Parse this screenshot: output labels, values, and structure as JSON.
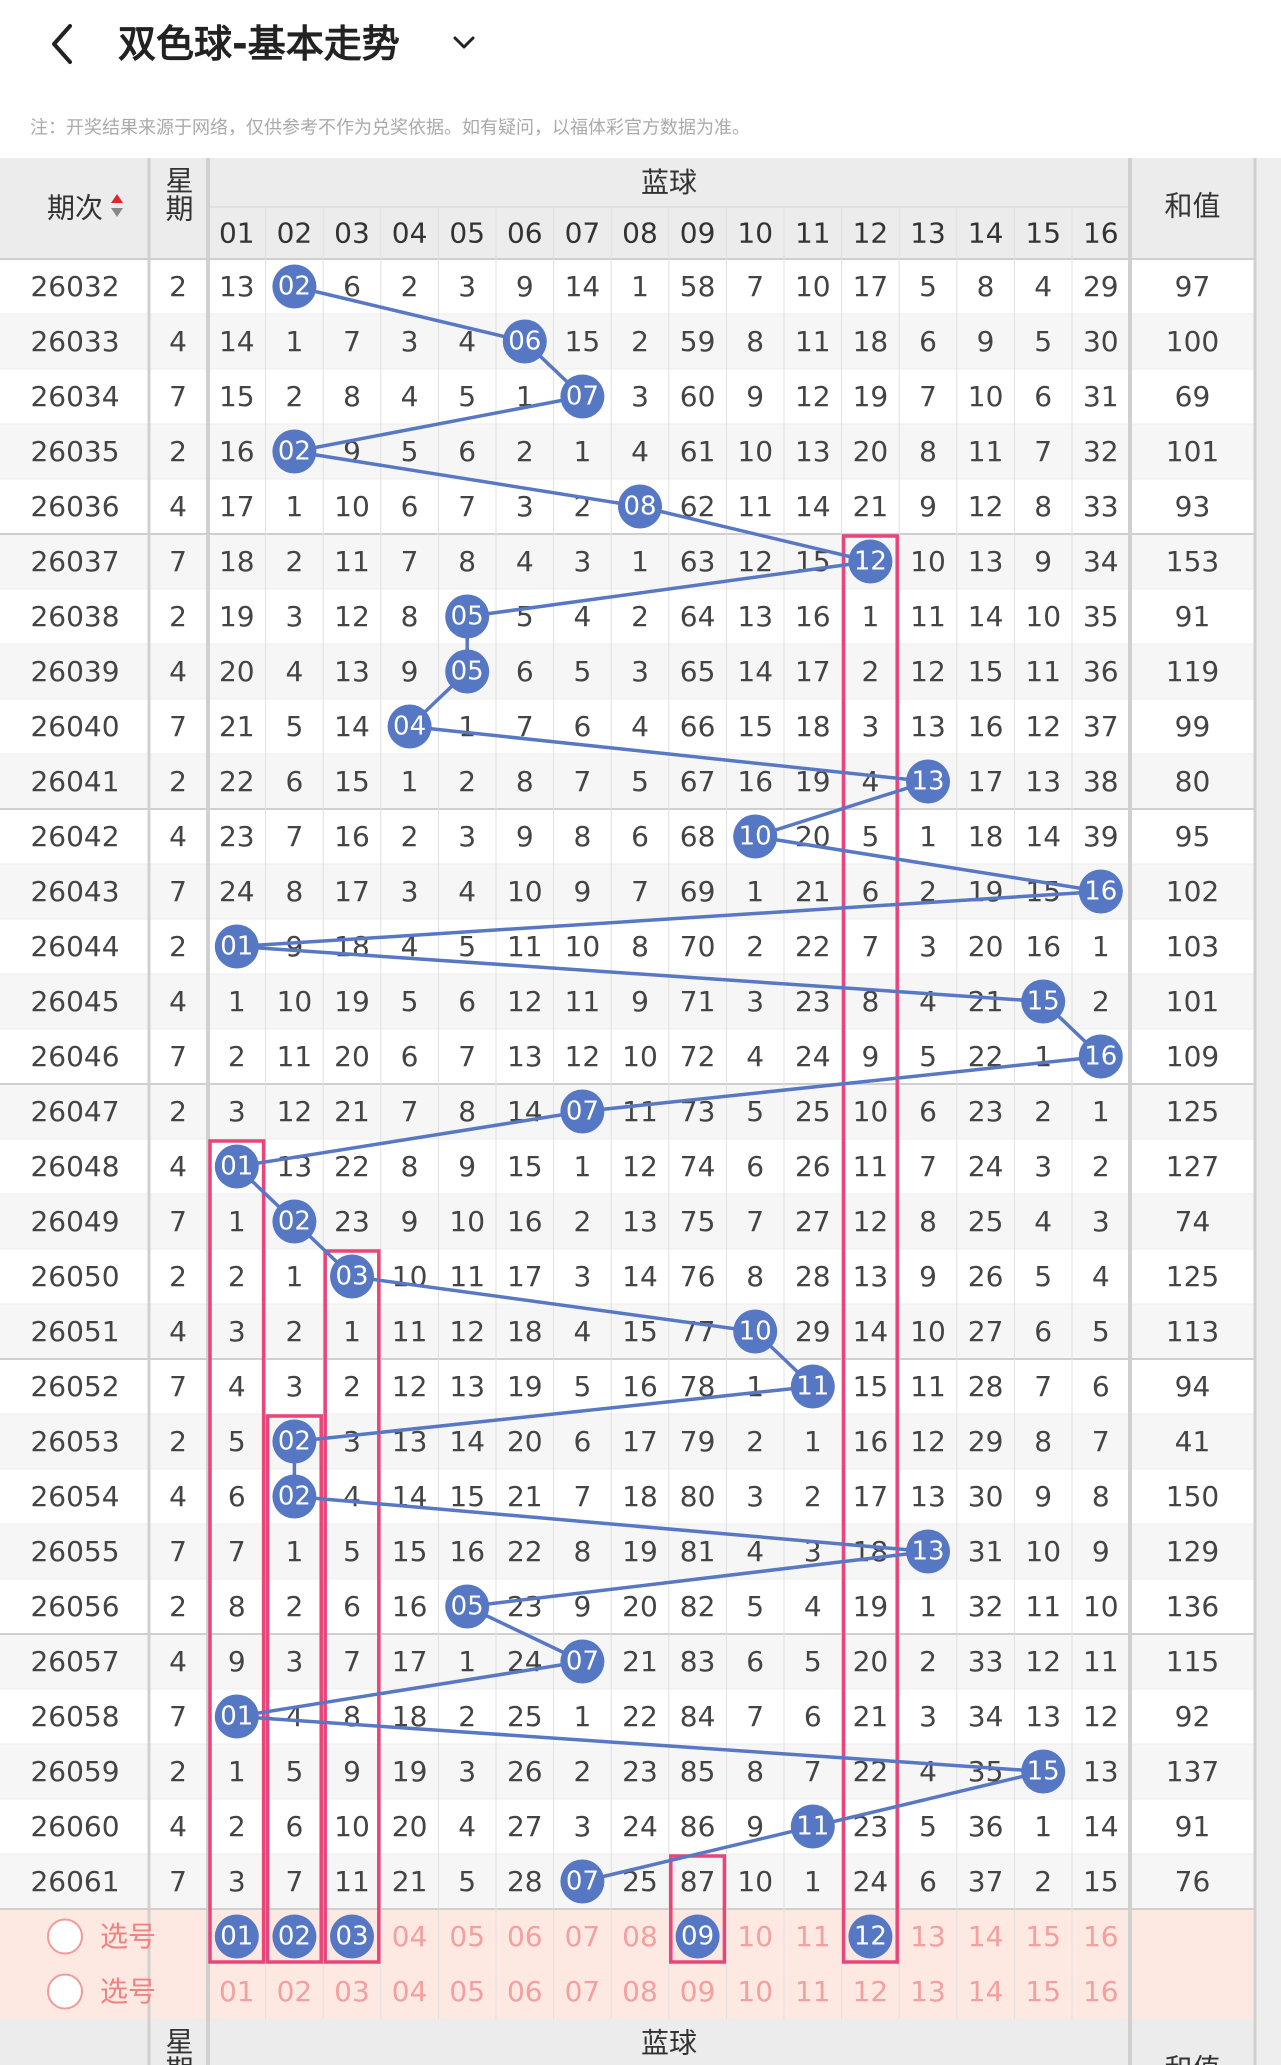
{
  "header": {
    "title": "双色球-基本走势"
  },
  "note": "注：开奖结果来源于网络，仅供参考不作为兑奖依据。如有疑问，以福体彩官方数据为准。",
  "table": {
    "columns": {
      "period": "期次",
      "weekday": "星期",
      "blue": "蓝球",
      "balls": [
        "01",
        "02",
        "03",
        "04",
        "05",
        "06",
        "07",
        "08",
        "09",
        "10",
        "11",
        "12",
        "13",
        "14",
        "15",
        "16"
      ],
      "sum": "和值"
    },
    "rows": [
      {
        "period": "26032",
        "weekday": 2,
        "cells": [
          13,
          {
            "ball": "02"
          },
          6,
          2,
          3,
          9,
          14,
          1,
          58,
          7,
          10,
          17,
          5,
          8,
          4,
          29
        ],
        "sum": 97
      },
      {
        "period": "26033",
        "weekday": 4,
        "cells": [
          14,
          1,
          7,
          3,
          4,
          {
            "ball": "06"
          },
          15,
          2,
          59,
          8,
          11,
          18,
          6,
          9,
          5,
          30
        ],
        "sum": 100
      },
      {
        "period": "26034",
        "weekday": 7,
        "cells": [
          15,
          2,
          8,
          4,
          5,
          1,
          {
            "ball": "07"
          },
          3,
          60,
          9,
          12,
          19,
          7,
          10,
          6,
          31
        ],
        "sum": 69
      },
      {
        "period": "26035",
        "weekday": 2,
        "cells": [
          16,
          {
            "ball": "02"
          },
          9,
          5,
          6,
          2,
          1,
          4,
          61,
          10,
          13,
          20,
          8,
          11,
          7,
          32
        ],
        "sum": 101
      },
      {
        "period": "26036",
        "weekday": 4,
        "cells": [
          17,
          1,
          10,
          6,
          7,
          3,
          2,
          {
            "ball": "08"
          },
          62,
          11,
          14,
          21,
          9,
          12,
          8,
          33
        ],
        "sum": 93
      },
      {
        "period": "26037",
        "weekday": 7,
        "cells": [
          18,
          2,
          11,
          7,
          8,
          4,
          3,
          1,
          63,
          12,
          15,
          {
            "ball": "12"
          },
          10,
          13,
          9,
          34
        ],
        "sum": 153
      },
      {
        "period": "26038",
        "weekday": 2,
        "cells": [
          19,
          3,
          12,
          8,
          {
            "ball": "05"
          },
          5,
          4,
          2,
          64,
          13,
          16,
          1,
          11,
          14,
          10,
          35
        ],
        "sum": 91
      },
      {
        "period": "26039",
        "weekday": 4,
        "cells": [
          20,
          4,
          13,
          9,
          {
            "ball": "05"
          },
          6,
          5,
          3,
          65,
          14,
          17,
          2,
          12,
          15,
          11,
          36
        ],
        "sum": 119
      },
      {
        "period": "26040",
        "weekday": 7,
        "cells": [
          21,
          5,
          14,
          {
            "ball": "04"
          },
          1,
          7,
          6,
          4,
          66,
          15,
          18,
          3,
          13,
          16,
          12,
          37
        ],
        "sum": 99
      },
      {
        "period": "26041",
        "weekday": 2,
        "cells": [
          22,
          6,
          15,
          1,
          2,
          8,
          7,
          5,
          67,
          16,
          19,
          4,
          {
            "ball": "13"
          },
          17,
          13,
          38
        ],
        "sum": 80
      },
      {
        "period": "26042",
        "weekday": 4,
        "cells": [
          23,
          7,
          16,
          2,
          3,
          9,
          8,
          6,
          68,
          {
            "ball": "10"
          },
          20,
          5,
          1,
          18,
          14,
          39
        ],
        "sum": 95
      },
      {
        "period": "26043",
        "weekday": 7,
        "cells": [
          24,
          8,
          17,
          3,
          4,
          10,
          9,
          7,
          69,
          1,
          21,
          6,
          2,
          19,
          15,
          {
            "ball": "16"
          }
        ],
        "sum": 102
      },
      {
        "period": "26044",
        "weekday": 2,
        "cells": [
          {
            "ball": "01"
          },
          9,
          18,
          4,
          5,
          11,
          10,
          8,
          70,
          2,
          22,
          7,
          3,
          20,
          16,
          1
        ],
        "sum": 103
      },
      {
        "period": "26045",
        "weekday": 4,
        "cells": [
          1,
          10,
          19,
          5,
          6,
          12,
          11,
          9,
          71,
          3,
          23,
          8,
          4,
          21,
          {
            "ball": "15"
          },
          2
        ],
        "sum": 101
      },
      {
        "period": "26046",
        "weekday": 7,
        "cells": [
          2,
          11,
          20,
          6,
          7,
          13,
          12,
          10,
          72,
          4,
          24,
          9,
          5,
          22,
          1,
          {
            "ball": "16"
          }
        ],
        "sum": 109
      },
      {
        "period": "26047",
        "weekday": 2,
        "cells": [
          3,
          12,
          21,
          7,
          8,
          14,
          {
            "ball": "07"
          },
          11,
          73,
          5,
          25,
          10,
          6,
          23,
          2,
          1
        ],
        "sum": 125
      },
      {
        "period": "26048",
        "weekday": 4,
        "cells": [
          {
            "ball": "01"
          },
          13,
          22,
          8,
          9,
          15,
          1,
          12,
          74,
          6,
          26,
          11,
          7,
          24,
          3,
          2
        ],
        "sum": 127
      },
      {
        "period": "26049",
        "weekday": 7,
        "cells": [
          1,
          {
            "ball": "02"
          },
          23,
          9,
          10,
          16,
          2,
          13,
          75,
          7,
          27,
          12,
          8,
          25,
          4,
          3
        ],
        "sum": 74
      },
      {
        "period": "26050",
        "weekday": 2,
        "cells": [
          2,
          1,
          {
            "ball": "03"
          },
          10,
          11,
          17,
          3,
          14,
          76,
          8,
          28,
          13,
          9,
          26,
          5,
          4
        ],
        "sum": 125
      },
      {
        "period": "26051",
        "weekday": 4,
        "cells": [
          3,
          2,
          1,
          11,
          12,
          18,
          4,
          15,
          77,
          {
            "ball": "10"
          },
          29,
          14,
          10,
          27,
          6,
          5
        ],
        "sum": 113
      },
      {
        "period": "26052",
        "weekday": 7,
        "cells": [
          4,
          3,
          2,
          12,
          13,
          19,
          5,
          16,
          78,
          1,
          {
            "ball": "11"
          },
          15,
          11,
          28,
          7,
          6
        ],
        "sum": 94
      },
      {
        "period": "26053",
        "weekday": 2,
        "cells": [
          5,
          {
            "ball": "02"
          },
          3,
          13,
          14,
          20,
          6,
          17,
          79,
          2,
          1,
          16,
          12,
          29,
          8,
          7
        ],
        "sum": 41
      },
      {
        "period": "26054",
        "weekday": 4,
        "cells": [
          6,
          {
            "ball": "02"
          },
          4,
          14,
          15,
          21,
          7,
          18,
          80,
          3,
          2,
          17,
          13,
          30,
          9,
          8
        ],
        "sum": 150
      },
      {
        "period": "26055",
        "weekday": 7,
        "cells": [
          7,
          1,
          5,
          15,
          16,
          22,
          8,
          19,
          81,
          4,
          3,
          18,
          {
            "ball": "13"
          },
          31,
          10,
          9
        ],
        "sum": 129
      },
      {
        "period": "26056",
        "weekday": 2,
        "cells": [
          8,
          2,
          6,
          16,
          {
            "ball": "05"
          },
          23,
          9,
          20,
          82,
          5,
          4,
          19,
          1,
          32,
          11,
          10
        ],
        "sum": 136
      },
      {
        "period": "26057",
        "weekday": 4,
        "cells": [
          9,
          3,
          7,
          17,
          1,
          24,
          {
            "ball": "07"
          },
          21,
          83,
          6,
          5,
          20,
          2,
          33,
          12,
          11
        ],
        "sum": 115
      },
      {
        "period": "26058",
        "weekday": 7,
        "cells": [
          {
            "ball": "01"
          },
          4,
          8,
          18,
          2,
          25,
          1,
          22,
          84,
          7,
          6,
          21,
          3,
          34,
          13,
          12
        ],
        "sum": 92
      },
      {
        "period": "26059",
        "weekday": 2,
        "cells": [
          1,
          5,
          9,
          19,
          3,
          26,
          2,
          23,
          85,
          8,
          7,
          22,
          4,
          35,
          {
            "ball": "15"
          },
          13
        ],
        "sum": 137
      },
      {
        "period": "26060",
        "weekday": 4,
        "cells": [
          2,
          6,
          10,
          20,
          4,
          27,
          3,
          24,
          86,
          9,
          {
            "ball": "11"
          },
          23,
          5,
          36,
          1,
          14
        ],
        "sum": 91
      },
      {
        "period": "26061",
        "weekday": 7,
        "cells": [
          3,
          7,
          11,
          21,
          5,
          28,
          {
            "ball": "07"
          },
          25,
          87,
          10,
          1,
          24,
          6,
          37,
          2,
          15
        ],
        "sum": 76
      }
    ],
    "pick": [
      {
        "label": "选号",
        "cells": [
          {
            "ball": "01"
          },
          {
            "ball": "02"
          },
          {
            "ball": "03"
          },
          "04",
          "05",
          "06",
          "07",
          "08",
          {
            "ball": "09"
          },
          "10",
          "11",
          {
            "ball": "12"
          },
          "13",
          "14",
          "15",
          "16"
        ]
      },
      {
        "label": "选号",
        "cells": [
          "01",
          "02",
          "03",
          "04",
          "05",
          "06",
          "07",
          "08",
          "09",
          "10",
          "11",
          "12",
          "13",
          "14",
          "15",
          "16"
        ]
      }
    ],
    "footer": {
      "weekday": "星期",
      "blue": "蓝球",
      "sum": "和值"
    }
  }
}
